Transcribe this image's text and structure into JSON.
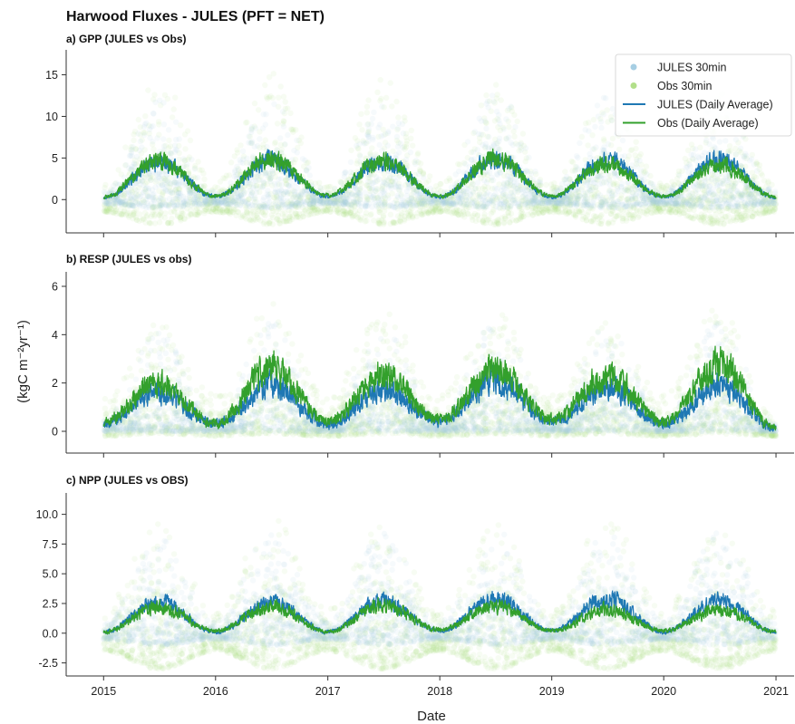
{
  "figure": {
    "title": "Harwood Fluxes - JULES (PFT = NET)",
    "ylabel": "(kgC m⁻²yr⁻¹)",
    "xlabel": "Date",
    "legend": {
      "placement": "top-right",
      "entries": [
        {
          "label": "JULES 30min",
          "kind": "marker",
          "color": "#a6cee3"
        },
        {
          "label": "Obs 30min",
          "kind": "marker",
          "color": "#b2df8a"
        },
        {
          "label": "JULES (Daily Average)",
          "kind": "line",
          "color": "#1f78b4"
        },
        {
          "label": "Obs (Daily Average)",
          "kind": "line",
          "color": "#33a02c"
        }
      ]
    }
  },
  "chart_data": [
    {
      "type": "line",
      "title": "a) GPP (JULES vs Obs)",
      "x": [
        "2015-01-01",
        "2015-07-01",
        "2016-01-01",
        "2016-07-01",
        "2017-01-01",
        "2017-07-01",
        "2018-01-01",
        "2018-07-01",
        "2019-01-01",
        "2019-07-01",
        "2020-01-01",
        "2020-07-01",
        "2021-01-01"
      ],
      "xlim": [
        "2014-09-01",
        "2021-03-01"
      ],
      "xticks": [
        "2015",
        "2016",
        "2017",
        "2018",
        "2019",
        "2020",
        "2021"
      ],
      "ylim": [
        -4,
        18
      ],
      "yticks": [
        "15",
        "10",
        "5",
        "0"
      ],
      "ytick_values": [
        15,
        10,
        5,
        0
      ],
      "scatter_band": {
        "JULES 30min": {
          "low": [
            -0.5,
            -1,
            -0.5,
            -1,
            -0.5,
            -1,
            -0.5,
            -1,
            -0.5,
            -1,
            -0.5,
            -1,
            -0.5
          ],
          "high": [
            1,
            12,
            1,
            12,
            1,
            12,
            1,
            13.5,
            1,
            13,
            1,
            12,
            1
          ]
        },
        "Obs 30min": {
          "low": [
            -1.5,
            -3,
            -1.5,
            -3,
            -1.5,
            -3,
            -1.5,
            -3,
            -1.5,
            -3,
            -1.5,
            -3,
            -1.5
          ],
          "high": [
            2,
            15,
            2,
            15.5,
            2,
            15,
            2,
            14,
            2,
            13,
            2,
            13,
            2
          ]
        }
      },
      "series": [
        {
          "name": "JULES (Daily Average)",
          "values": [
            0.2,
            4.5,
            0.4,
            4.7,
            0.4,
            4.6,
            0.3,
            5.0,
            0.3,
            4.8,
            0.3,
            4.8,
            0.2
          ]
        },
        {
          "name": "Obs (Daily Average)",
          "values": [
            0.3,
            4.6,
            0.4,
            4.9,
            0.5,
            4.7,
            0.4,
            4.9,
            0.4,
            4.3,
            0.4,
            4.2,
            0.3
          ]
        }
      ],
      "grid": false
    },
    {
      "type": "line",
      "title": "b) RESP (JULES vs obs)",
      "x": [
        "2015-01-01",
        "2015-07-01",
        "2016-01-01",
        "2016-07-01",
        "2017-01-01",
        "2017-07-01",
        "2018-01-01",
        "2018-07-01",
        "2019-01-01",
        "2019-07-01",
        "2020-01-01",
        "2020-07-01",
        "2021-01-01"
      ],
      "xlim": [
        "2014-09-01",
        "2021-03-01"
      ],
      "xticks": [
        "2015",
        "2016",
        "2017",
        "2018",
        "2019",
        "2020",
        "2021"
      ],
      "ylim": [
        -0.9,
        6.6
      ],
      "yticks": [
        "6",
        "4",
        "2",
        "0"
      ],
      "ytick_values": [
        6,
        4,
        2,
        0
      ],
      "scatter_band": {
        "JULES 30min": {
          "low": [
            0,
            0,
            0,
            0,
            0,
            0,
            0,
            0,
            0,
            0,
            0,
            0,
            0
          ],
          "high": [
            0.5,
            4.2,
            0.5,
            4.5,
            0.5,
            4.3,
            0.5,
            4.7,
            0.5,
            4.4,
            0.5,
            4.6,
            0.3
          ]
        },
        "Obs 30min": {
          "low": [
            -0.2,
            -0.1,
            -0.2,
            -0.1,
            -0.2,
            -0.1,
            -0.2,
            -0.1,
            -0.2,
            -0.1,
            -0.2,
            -0.1,
            -0.2
          ],
          "high": [
            1.5,
            4.5,
            1.5,
            5.3,
            1.5,
            5.1,
            1.5,
            5.0,
            1.5,
            4.5,
            1.5,
            5.2,
            0.5
          ]
        }
      },
      "series": [
        {
          "name": "JULES (Daily Average)",
          "values": [
            0.3,
            1.6,
            0.3,
            1.9,
            0.3,
            1.7,
            0.4,
            2.1,
            0.4,
            1.8,
            0.3,
            1.9,
            0.1
          ]
        },
        {
          "name": "Obs (Daily Average)",
          "values": [
            0.4,
            2.0,
            0.3,
            2.6,
            0.4,
            2.3,
            0.5,
            2.6,
            0.5,
            2.3,
            0.4,
            2.8,
            0.1
          ]
        }
      ],
      "grid": false
    },
    {
      "type": "line",
      "title": "c) NPP (JULES vs OBS)",
      "x": [
        "2015-01-01",
        "2015-07-01",
        "2016-01-01",
        "2016-07-01",
        "2017-01-01",
        "2017-07-01",
        "2018-01-01",
        "2018-07-01",
        "2019-01-01",
        "2019-07-01",
        "2020-01-01",
        "2020-07-01",
        "2021-01-01"
      ],
      "xlim": [
        "2014-09-01",
        "2021-03-01"
      ],
      "xticks": [
        "2015",
        "2016",
        "2017",
        "2018",
        "2019",
        "2020",
        "2021"
      ],
      "ylim": [
        -3.6,
        11.8
      ],
      "yticks": [
        "10.0",
        "7.5",
        "5.0",
        "2.5",
        "0.0",
        "-2.5"
      ],
      "ytick_values": [
        10,
        7.5,
        5,
        2.5,
        0,
        -2.5
      ],
      "scatter_band": {
        "JULES 30min": {
          "low": [
            -0.5,
            -1,
            -0.5,
            -1,
            -0.5,
            -1,
            -0.5,
            -1,
            -0.5,
            -1,
            -0.5,
            -1,
            -0.5
          ],
          "high": [
            1,
            8,
            1,
            8.5,
            1,
            8.5,
            1,
            9,
            1,
            8.5,
            1,
            8.5,
            1
          ]
        },
        "Obs 30min": {
          "low": [
            -1.5,
            -3,
            -1.5,
            -3,
            -1.5,
            -3,
            -1.5,
            -3,
            -1.5,
            -3,
            -1.5,
            -3,
            -1.5
          ],
          "high": [
            2,
            9.5,
            2,
            10,
            2,
            10,
            2,
            9.5,
            2,
            10,
            2,
            9,
            2
          ]
        }
      },
      "series": [
        {
          "name": "JULES (Daily Average)",
          "values": [
            0.1,
            2.6,
            0.1,
            2.6,
            0.1,
            2.7,
            0.2,
            2.9,
            0.2,
            2.9,
            0.1,
            2.7,
            0.1
          ]
        },
        {
          "name": "Obs (Daily Average)",
          "values": [
            0.1,
            2.2,
            0.2,
            2.3,
            0.1,
            2.4,
            0.3,
            2.3,
            0.2,
            2.0,
            0.2,
            2.0,
            0.1
          ]
        }
      ],
      "grid": false
    }
  ]
}
